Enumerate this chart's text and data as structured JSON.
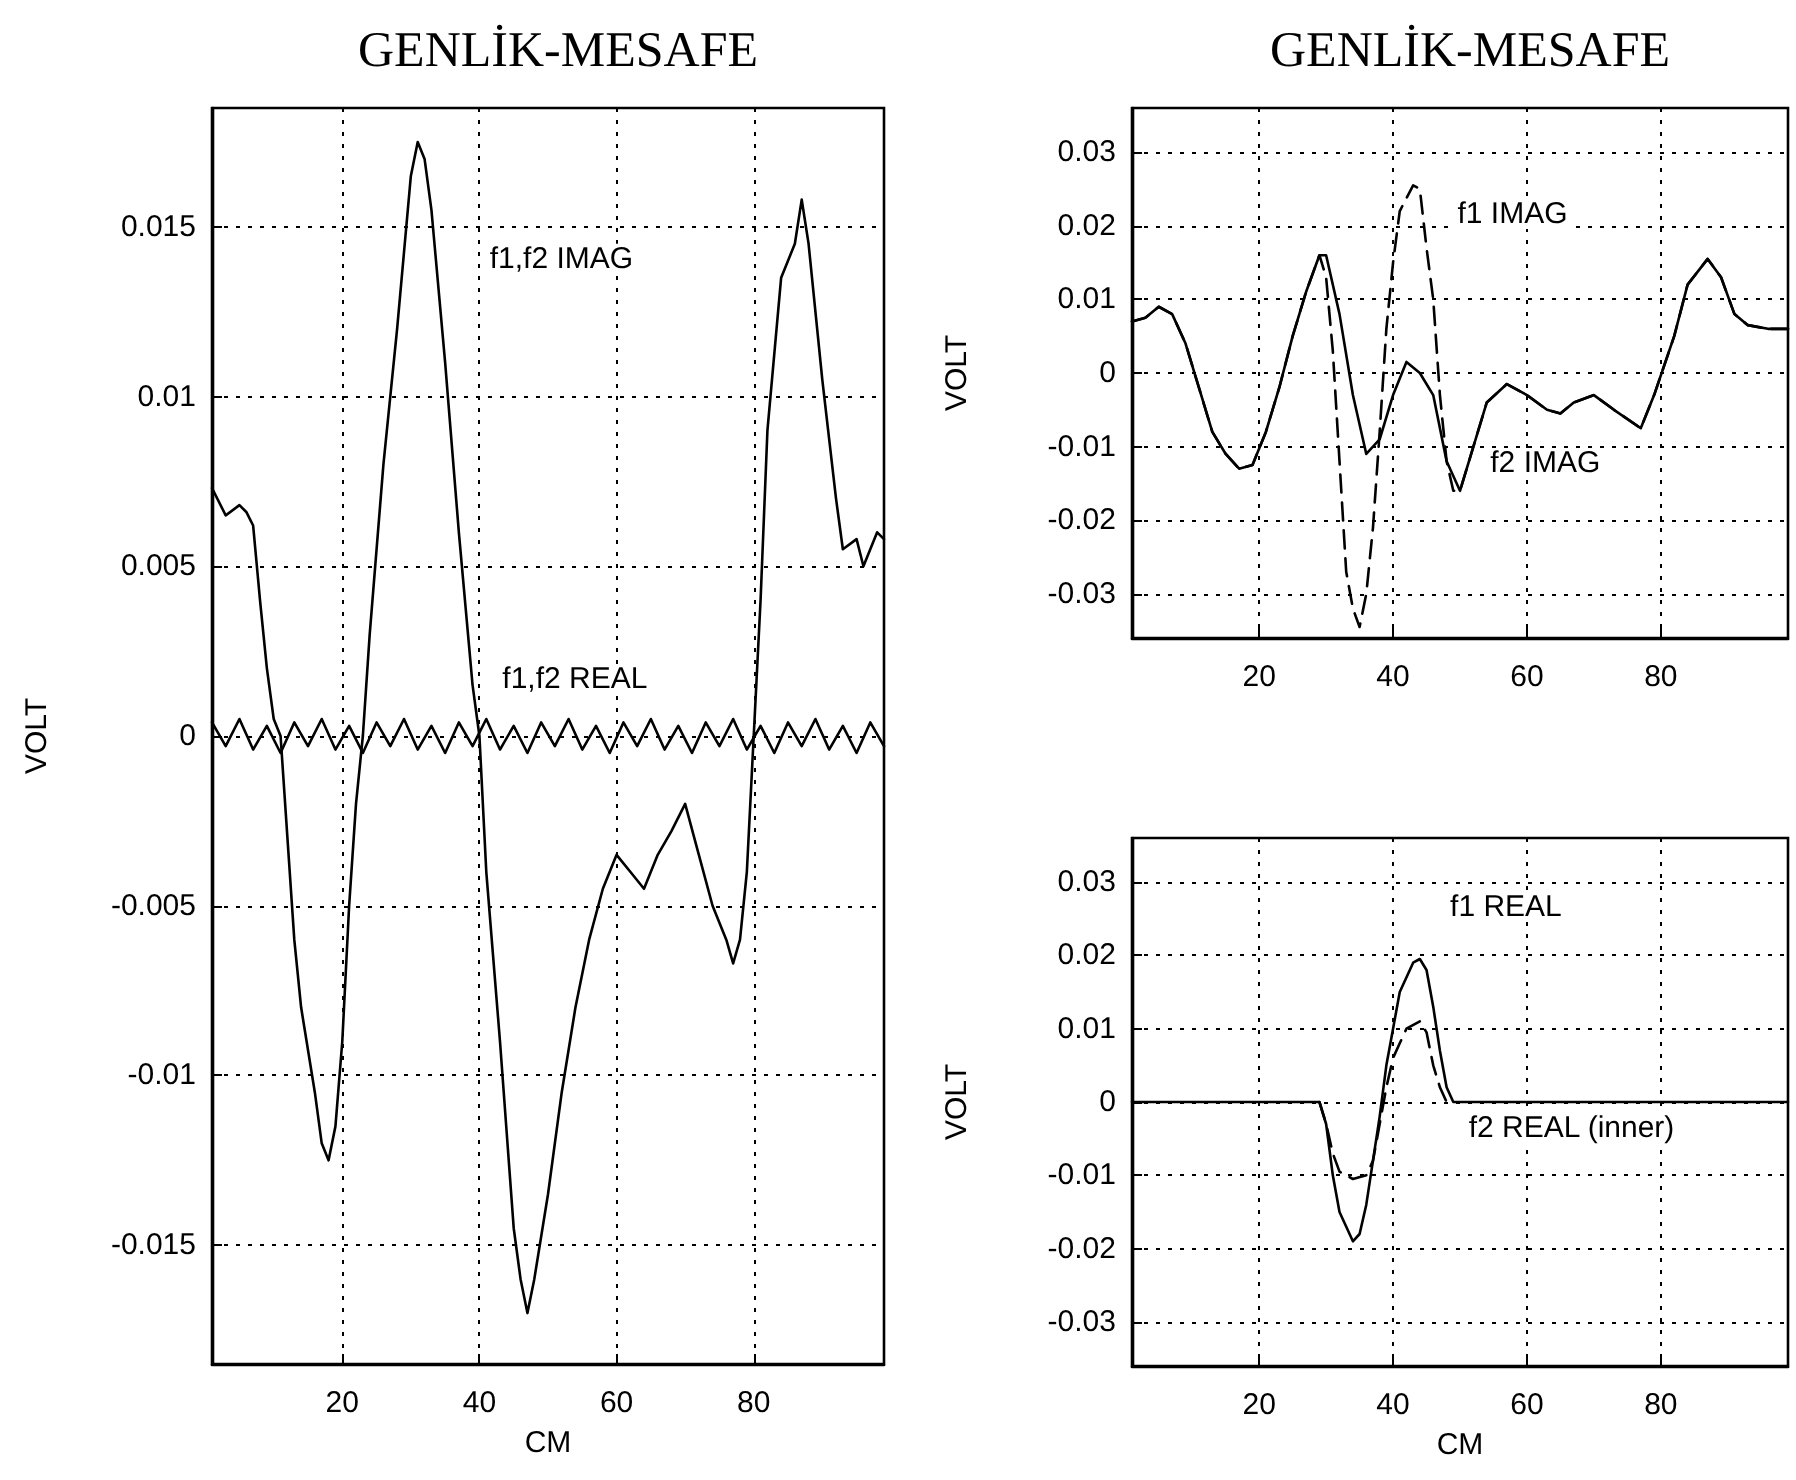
{
  "chart_data": [
    {
      "type": "line",
      "title": "GENLİK-MESAFE",
      "xlabel": "CM",
      "ylabel": "VOLT",
      "xlim": [
        1,
        99
      ],
      "ylim": [
        -0.0185,
        0.0185
      ],
      "xticks": [
        20,
        40,
        60,
        80
      ],
      "yticks": [
        -0.015,
        -0.01,
        -0.005,
        0,
        0.005,
        0.01,
        0.015
      ],
      "grid": true,
      "line_style": "solid",
      "annotations": [
        "f1,f2 IMAG",
        "f1,f2 REAL"
      ],
      "series": [
        {
          "color": "#000000",
          "x": [
            1,
            3,
            5,
            6,
            7,
            8,
            9,
            10,
            11,
            12,
            13,
            14,
            16,
            17,
            18,
            19,
            20,
            21,
            22,
            23,
            24,
            26,
            28,
            30,
            31,
            32,
            33,
            35,
            37,
            39,
            40,
            41,
            43,
            45,
            46,
            47,
            48,
            50,
            52,
            54,
            56,
            58,
            60,
            62,
            64,
            66,
            68,
            70,
            72,
            74,
            76,
            77,
            78,
            79,
            80,
            81,
            82,
            84,
            86,
            87,
            88,
            90,
            92,
            93,
            95,
            96,
            98,
            99
          ],
          "values": [
            0.0073,
            0.0065,
            0.0068,
            0.0066,
            0.0062,
            0.004,
            0.002,
            0.0005,
            0,
            -0.003,
            -0.006,
            -0.008,
            -0.0105,
            -0.012,
            -0.0125,
            -0.0115,
            -0.009,
            -0.005,
            -0.002,
            0,
            0.003,
            0.008,
            0.012,
            0.0165,
            0.0175,
            0.017,
            0.0155,
            0.011,
            0.006,
            0.0015,
            0,
            -0.004,
            -0.009,
            -0.0145,
            -0.016,
            -0.017,
            -0.016,
            -0.0135,
            -0.0105,
            -0.008,
            -0.006,
            -0.0045,
            -0.0035,
            -0.004,
            -0.0045,
            -0.0035,
            -0.0028,
            -0.002,
            -0.0035,
            -0.005,
            -0.006,
            -0.0067,
            -0.006,
            -0.004,
            0,
            0.004,
            0.009,
            0.0135,
            0.0145,
            0.0158,
            0.0145,
            0.0105,
            0.007,
            0.0055,
            0.0058,
            0.005,
            0.006,
            0.0058
          ]
        },
        {
          "color": "#000000",
          "x": [
            1,
            3,
            5,
            7,
            9,
            11,
            13,
            15,
            17,
            19,
            21,
            23,
            25,
            27,
            29,
            31,
            33,
            35,
            37,
            39,
            41,
            43,
            45,
            47,
            49,
            51,
            53,
            55,
            57,
            59,
            61,
            63,
            65,
            67,
            69,
            71,
            73,
            75,
            77,
            79,
            81,
            83,
            85,
            87,
            89,
            91,
            93,
            95,
            97,
            99
          ],
          "values": [
            0.0004,
            -0.0003,
            0.0005,
            -0.0004,
            0.0003,
            -0.0005,
            0.0004,
            -0.0003,
            0.0005,
            -0.0004,
            0.0003,
            -0.0005,
            0.0004,
            -0.0003,
            0.0005,
            -0.0004,
            0.0003,
            -0.0005,
            0.0004,
            -0.0003,
            0.0005,
            -0.0004,
            0.0003,
            -0.0005,
            0.0004,
            -0.0003,
            0.0005,
            -0.0004,
            0.0003,
            -0.0005,
            0.0004,
            -0.0003,
            0.0005,
            -0.0004,
            0.0003,
            -0.0005,
            0.0004,
            -0.0003,
            0.0005,
            -0.0004,
            0.0003,
            -0.0005,
            0.0004,
            -0.0003,
            0.0005,
            -0.0004,
            0.0003,
            -0.0005,
            0.0004,
            -0.0003
          ]
        }
      ]
    },
    {
      "type": "line",
      "title": "GENLİK-MESAFE",
      "ylabel": "VOLT",
      "xlim": [
        1,
        99
      ],
      "ylim": [
        -0.036,
        0.036
      ],
      "xticks": [
        20,
        40,
        60,
        80
      ],
      "yticks": [
        -0.03,
        -0.02,
        -0.01,
        0,
        0.01,
        0.02,
        0.03
      ],
      "grid": true,
      "annotations": [
        "f1 IMAG",
        "f2 IMAG"
      ],
      "series": [
        {
          "color": "#000000",
          "line_style": "dashed",
          "x": [
            1,
            3,
            5,
            7,
            9,
            11,
            13,
            15,
            17,
            19,
            21,
            23,
            25,
            27,
            29,
            30,
            31,
            32,
            33,
            34,
            35,
            36,
            37,
            38,
            39,
            40,
            41,
            43,
            44,
            45,
            46,
            47,
            48,
            49,
            50,
            52,
            54,
            57,
            60,
            63,
            65,
            67,
            70,
            73,
            77,
            79,
            82,
            84,
            87,
            89,
            91,
            93,
            96,
            99
          ],
          "values": [
            0.007,
            0.0075,
            0.009,
            0.008,
            0.004,
            -0.002,
            -0.008,
            -0.011,
            -0.013,
            -0.0125,
            -0.008,
            -0.002,
            0.005,
            0.011,
            0.016,
            0.013,
            0.003,
            -0.012,
            -0.027,
            -0.032,
            -0.0345,
            -0.03,
            -0.021,
            -0.008,
            0.006,
            0.015,
            0.022,
            0.0255,
            0.025,
            0.017,
            0.01,
            -0.003,
            -0.012,
            -0.016,
            -0.016,
            -0.01,
            -0.004,
            -0.0015,
            -0.003,
            -0.005,
            -0.0055,
            -0.004,
            -0.003,
            -0.005,
            -0.0075,
            -0.003,
            0.005,
            0.012,
            0.0155,
            0.013,
            0.008,
            0.0065,
            0.006,
            0.006
          ]
        },
        {
          "color": "#000000",
          "line_style": "solid",
          "x": [
            1,
            3,
            5,
            7,
            9,
            11,
            13,
            15,
            17,
            19,
            21,
            23,
            25,
            27,
            29,
            30,
            32,
            34,
            36,
            38,
            40,
            42,
            44,
            46,
            48,
            50,
            52,
            54,
            57,
            60,
            63,
            65,
            67,
            70,
            73,
            77,
            79,
            82,
            84,
            87,
            89,
            91,
            93,
            96,
            99
          ],
          "values": [
            0.007,
            0.0075,
            0.009,
            0.008,
            0.004,
            -0.002,
            -0.008,
            -0.011,
            -0.013,
            -0.0125,
            -0.008,
            -0.002,
            0.005,
            0.011,
            0.016,
            0.016,
            0.008,
            -0.003,
            -0.011,
            -0.009,
            -0.003,
            0.0015,
            0,
            -0.003,
            -0.012,
            -0.016,
            -0.01,
            -0.004,
            -0.0015,
            -0.003,
            -0.005,
            -0.0055,
            -0.004,
            -0.003,
            -0.005,
            -0.0075,
            -0.003,
            0.005,
            0.012,
            0.0155,
            0.013,
            0.008,
            0.0065,
            0.006,
            0.006
          ]
        }
      ]
    },
    {
      "type": "line",
      "xlabel": "CM",
      "ylabel": "VOLT",
      "xlim": [
        1,
        99
      ],
      "ylim": [
        -0.036,
        0.036
      ],
      "xticks": [
        20,
        40,
        60,
        80
      ],
      "yticks": [
        -0.03,
        -0.02,
        -0.01,
        0,
        0.01,
        0.02,
        0.03
      ],
      "grid": true,
      "annotations": [
        "f1 REAL",
        "f2 REAL (inner)"
      ],
      "series": [
        {
          "color": "#000000",
          "line_style": "solid",
          "x": [
            1,
            10,
            20,
            29,
            30,
            31,
            32,
            34,
            35,
            36,
            37,
            38,
            39,
            40,
            41,
            43,
            44,
            45,
            46,
            47,
            48,
            49,
            50,
            60,
            70,
            80,
            90,
            99
          ],
          "values": [
            0,
            0,
            0,
            0,
            -0.003,
            -0.01,
            -0.015,
            -0.019,
            -0.018,
            -0.014,
            -0.008,
            -0.002,
            0.005,
            0.01,
            0.015,
            0.019,
            0.0195,
            0.018,
            0.013,
            0.007,
            0.002,
            0,
            0,
            0,
            0,
            0,
            0,
            0
          ]
        },
        {
          "color": "#000000",
          "line_style": "dashed",
          "x": [
            29,
            30,
            31,
            32,
            34,
            36,
            37,
            38,
            39,
            40,
            41,
            42,
            44,
            45,
            46,
            47,
            48
          ],
          "values": [
            0,
            -0.003,
            -0.007,
            -0.0095,
            -0.0105,
            -0.01,
            -0.008,
            -0.003,
            0.002,
            0.006,
            0.008,
            0.01,
            0.011,
            0.0095,
            0.005,
            0.002,
            0
          ]
        }
      ]
    }
  ]
}
